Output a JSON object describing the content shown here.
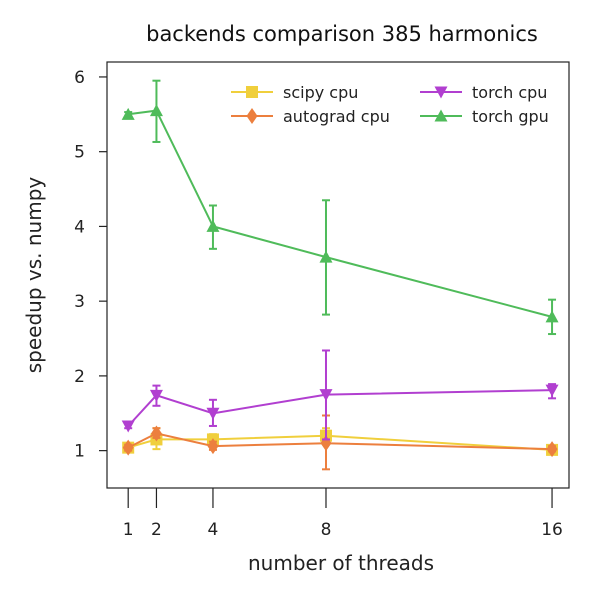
{
  "chart_data": {
    "type": "line",
    "title": "backends comparison 385 harmonics",
    "xlabel": "number of threads",
    "ylabel": "speedup vs. numpy",
    "x": [
      1,
      2,
      4,
      8,
      16
    ],
    "x_ticks": [
      "1",
      "2",
      "4",
      "8",
      "16"
    ],
    "xlim": [
      0.25,
      16.6
    ],
    "ylim": [
      0.5,
      6.2
    ],
    "y_ticks": [
      "1",
      "2",
      "3",
      "4",
      "5",
      "6"
    ],
    "grid": false,
    "legend_position": "top-right",
    "series": [
      {
        "name": "scipy cpu",
        "color": "#f0cf3c",
        "marker": "square",
        "values": [
          1.04,
          1.15,
          1.15,
          1.2,
          1.01
        ],
        "err_low": [
          1.0,
          1.02,
          1.08,
          1.1,
          0.98
        ],
        "err_high": [
          1.08,
          1.3,
          1.22,
          1.3,
          1.04
        ]
      },
      {
        "name": "autograd cpu",
        "color": "#ec7f3e",
        "marker": "diamond",
        "values": [
          1.04,
          1.23,
          1.06,
          1.1,
          1.02
        ],
        "err_low": [
          1.0,
          1.17,
          1.01,
          0.75,
          0.99
        ],
        "err_high": [
          1.08,
          1.3,
          1.12,
          1.47,
          1.06
        ]
      },
      {
        "name": "torch cpu",
        "color": "#b13fd0",
        "marker": "triangle-down",
        "values": [
          1.33,
          1.74,
          1.5,
          1.75,
          1.81
        ],
        "err_low": [
          1.3,
          1.6,
          1.33,
          1.15,
          1.7
        ],
        "err_high": [
          1.36,
          1.87,
          1.68,
          2.34,
          1.89
        ]
      },
      {
        "name": "torch gpu",
        "color": "#4fbb5a",
        "marker": "triangle-up",
        "values": [
          5.5,
          5.55,
          4.0,
          3.59,
          2.79
        ],
        "err_low": [
          5.47,
          5.13,
          3.7,
          2.82,
          2.56
        ],
        "err_high": [
          5.53,
          5.95,
          4.28,
          4.35,
          3.02
        ]
      }
    ]
  }
}
